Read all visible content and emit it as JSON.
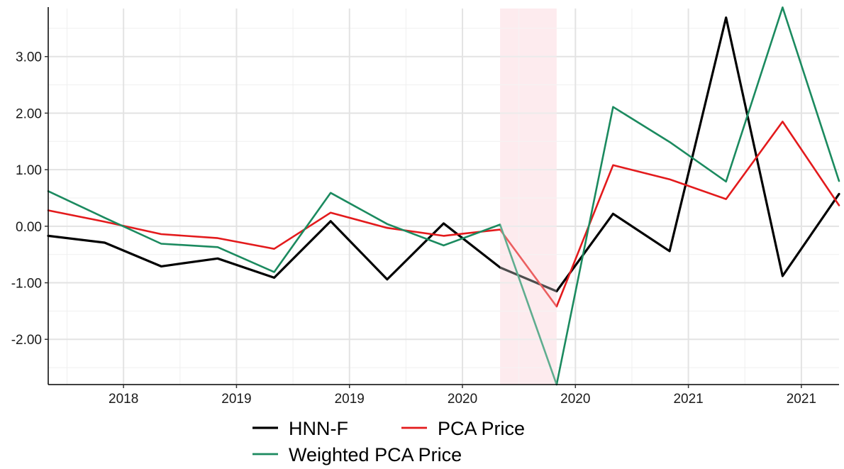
{
  "chart_data": {
    "type": "line",
    "title": "",
    "xlabel": "",
    "ylabel": "",
    "x": [
      0,
      1,
      2,
      3,
      4,
      5,
      6,
      7,
      8,
      9,
      10,
      11,
      12,
      13,
      14
    ],
    "xlim": [
      0,
      14
    ],
    "ylim": [
      -2.8,
      3.85
    ],
    "x_ticks": [
      {
        "x": 1.333,
        "label": "2018"
      },
      {
        "x": 3.333,
        "label": "2019"
      },
      {
        "x": 5.333,
        "label": "2019"
      },
      {
        "x": 7.333,
        "label": "2020"
      },
      {
        "x": 9.333,
        "label": "2020"
      },
      {
        "x": 11.333,
        "label": "2021"
      },
      {
        "x": 13.333,
        "label": "2021"
      }
    ],
    "y_ticks": [
      {
        "y": -2,
        "label": "-2.00"
      },
      {
        "y": -1,
        "label": "-1.00"
      },
      {
        "y": 0,
        "label": "0.00"
      },
      {
        "y": 1,
        "label": "1.00"
      },
      {
        "y": 2,
        "label": "2.00"
      },
      {
        "y": 3,
        "label": "3.00"
      }
    ],
    "shaded_region": {
      "x_start": 8,
      "x_end": 9,
      "color": "#fde3e7"
    },
    "grid": true,
    "legend_position": "bottom",
    "series": [
      {
        "name": "HNN-F",
        "color": "#000000",
        "values": [
          -0.17,
          -0.29,
          -0.71,
          -0.57,
          -0.91,
          0.09,
          -0.94,
          0.05,
          -0.73,
          -1.15,
          0.22,
          -0.44,
          3.69,
          -0.88,
          0.57
        ]
      },
      {
        "name": "PCA Price",
        "color": "#e31a1c",
        "values": [
          0.28,
          0.08,
          -0.14,
          -0.21,
          -0.4,
          0.24,
          -0.03,
          -0.17,
          -0.06,
          -1.42,
          1.08,
          0.83,
          0.48,
          1.85,
          0.37
        ]
      },
      {
        "name": "Weighted PCA Price",
        "color": "#1b8a5f",
        "values": [
          0.62,
          0.15,
          -0.31,
          -0.37,
          -0.81,
          0.59,
          0.04,
          -0.34,
          0.03,
          -2.8,
          2.11,
          1.49,
          0.79,
          3.87,
          0.8
        ]
      }
    ]
  }
}
